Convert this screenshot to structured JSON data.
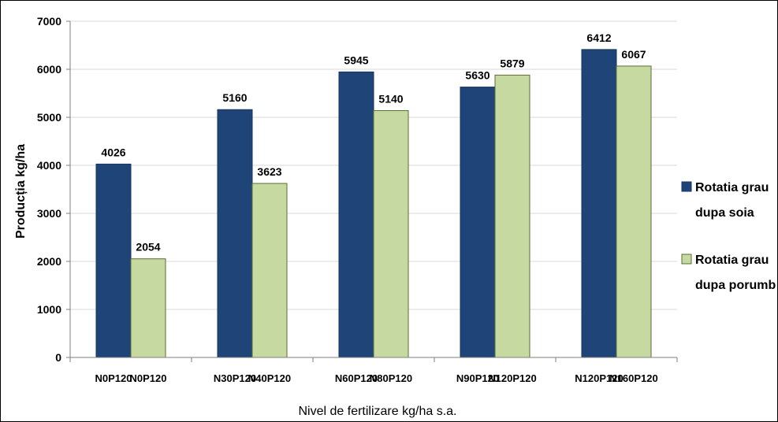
{
  "chart_data": {
    "type": "bar",
    "categories": [
      [
        "N0P120",
        "N0P120"
      ],
      [
        "N30P120",
        "N40P120"
      ],
      [
        "N60P120",
        "N80P120"
      ],
      [
        "N90P120",
        "N120P120"
      ],
      [
        "N120P120",
        "N160P120"
      ]
    ],
    "series": [
      {
        "name": [
          "Rotatia grau",
          "dupa soia"
        ],
        "values": [
          4026,
          5160,
          5945,
          5630,
          6412
        ],
        "color": "#1f4478"
      },
      {
        "name": [
          "Rotatia grau",
          "dupa porumb"
        ],
        "values": [
          2054,
          3623,
          5140,
          5879,
          6067
        ],
        "color": "#c6d9a0"
      }
    ],
    "xlabel": "Nivel de fertilizare kg/ha s.a.",
    "ylabel": "Producția kg/ha",
    "ylim": [
      0,
      7000
    ],
    "yticks": [
      0,
      1000,
      2000,
      3000,
      4000,
      5000,
      6000,
      7000
    ],
    "grid": true,
    "legend_position": "right",
    "colors": {
      "gridline": "#d9d9d9",
      "axis": "#7f7f7f",
      "bar_edge": "#5a6e32"
    }
  }
}
